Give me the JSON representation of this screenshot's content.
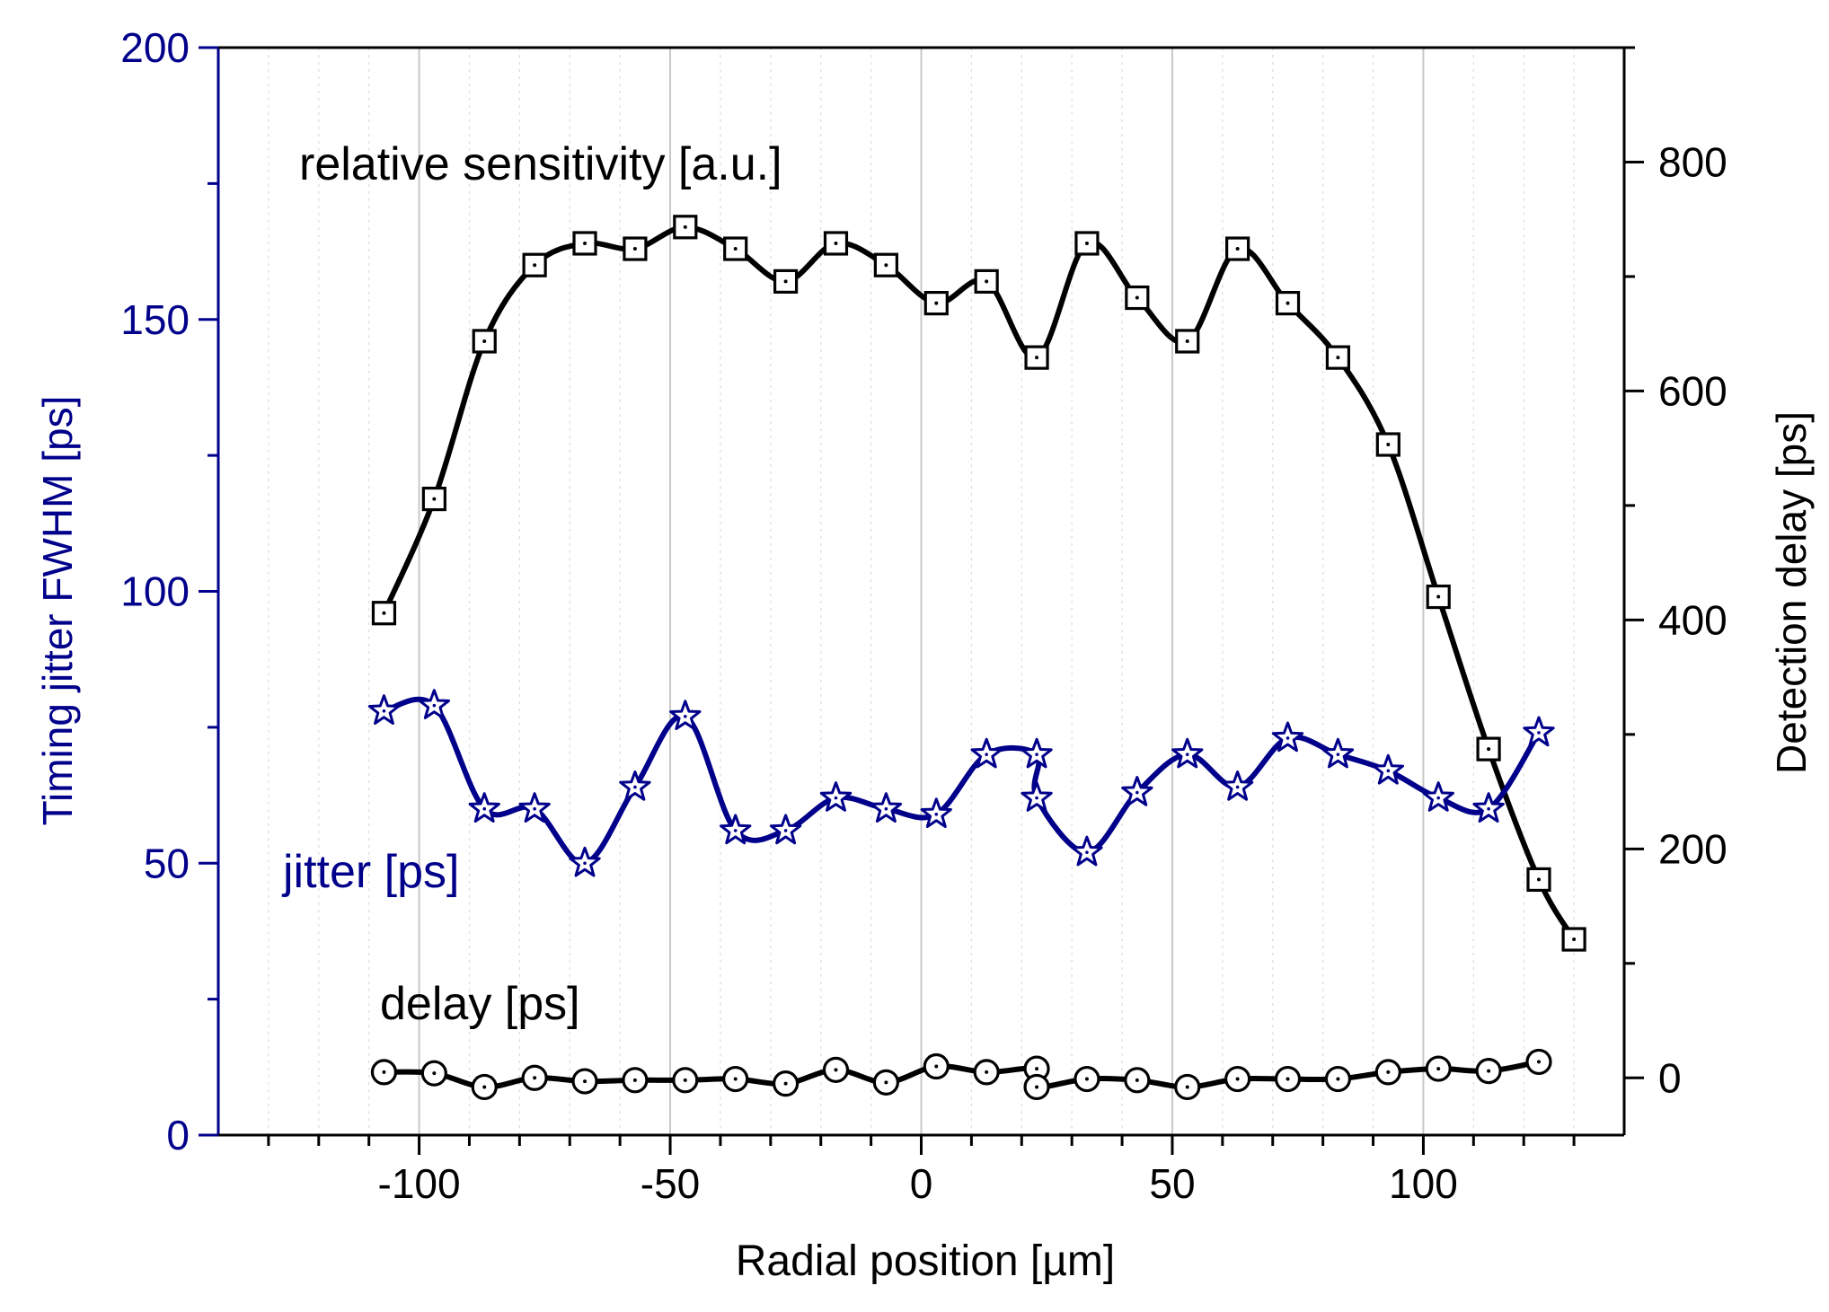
{
  "chart_data": {
    "type": "line",
    "xlabel": "Radial position [µm]",
    "ylabel_left": "Timing jitter FWHM [ps]",
    "ylabel_right": "Detection delay [ps]",
    "xlim": [
      -140,
      140
    ],
    "ylim_left": [
      0,
      200
    ],
    "ylim_right": [
      -50,
      900
    ],
    "xticks": [
      -100,
      -50,
      0,
      50,
      100
    ],
    "xtick_labels": [
      "-100",
      "-50",
      "0",
      "50",
      "100"
    ],
    "yticks_left": [
      0,
      50,
      100,
      150,
      200
    ],
    "ytick_labels_left": [
      "0",
      "50",
      "100",
      "150",
      "200"
    ],
    "yticks_right": [
      0,
      200,
      400,
      600,
      800
    ],
    "ytick_labels_right": [
      "0",
      "200",
      "400",
      "600",
      "800"
    ],
    "grid": "vertical",
    "colors": {
      "blue": "#00008b",
      "black": "#000000",
      "grid": "#c8c8c8"
    },
    "series": [
      {
        "name": "relative sensitivity [a.u.]",
        "axis": "left",
        "marker": "square",
        "color": "#000000",
        "x": [
          -107,
          -97,
          -87,
          -77,
          -67,
          -57,
          -47,
          -37,
          -27,
          -17,
          -7,
          3,
          13,
          23,
          33,
          43,
          53,
          63,
          73,
          83,
          93,
          103,
          113,
          123,
          130
        ],
        "y": [
          96,
          117,
          146,
          160,
          164,
          163,
          167,
          163,
          157,
          164,
          160,
          153,
          157,
          143,
          164,
          154,
          146,
          163,
          153,
          143,
          127,
          99,
          71,
          47,
          36
        ]
      },
      {
        "name": "jitter [ps]",
        "axis": "left",
        "marker": "star",
        "color": "#00008b",
        "x": [
          -107,
          -97,
          -87,
          -77,
          -67,
          -57,
          -47,
          -37,
          -27,
          -17,
          -7,
          3,
          13,
          23,
          23,
          33,
          43,
          53,
          63,
          73,
          83,
          93,
          103,
          113,
          123
        ],
        "y": [
          78,
          79,
          60,
          60,
          50,
          64,
          77,
          56,
          56,
          62,
          60,
          59,
          70,
          70,
          62,
          52,
          63,
          70,
          64,
          73,
          70,
          67,
          62,
          60,
          74
        ]
      },
      {
        "name": "delay [ps]",
        "axis": "right",
        "marker": "circle",
        "color": "#000000",
        "x": [
          -107,
          -97,
          -87,
          -77,
          -67,
          -57,
          -47,
          -37,
          -27,
          -17,
          -7,
          3,
          13,
          23,
          23,
          33,
          43,
          53,
          63,
          73,
          83,
          93,
          103,
          113,
          123
        ],
        "y": [
          5,
          4,
          -8,
          0,
          -3,
          -2,
          -2,
          -1,
          -5,
          7,
          -4,
          10,
          5,
          8,
          -8,
          -1,
          -2,
          -8,
          -1,
          -1,
          -1,
          5,
          8,
          6,
          14
        ]
      }
    ],
    "annotations": [
      {
        "text": "relative sensitivity [a.u.]",
        "color": "#000000"
      },
      {
        "text": "jitter [ps]",
        "color": "#00008b"
      },
      {
        "text": "delay [ps]",
        "color": "#000000"
      }
    ]
  }
}
